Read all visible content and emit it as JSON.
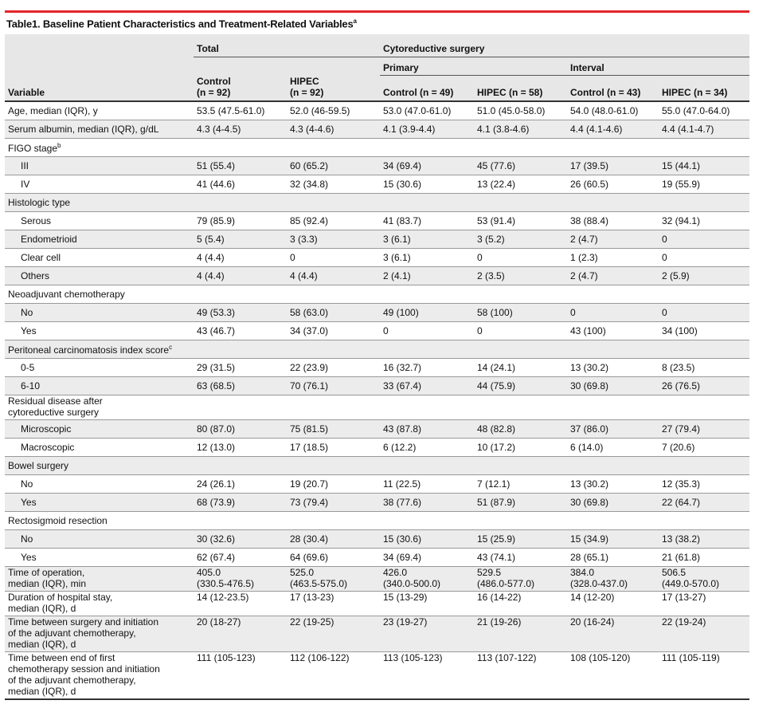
{
  "title": "Table1. Baseline Patient Characteristics and Treatment-Related Variables",
  "title_sup": "a",
  "header": {
    "group_total": "Total",
    "group_cytoreductive": "Cytoreductive surgery",
    "sub_primary": "Primary",
    "sub_interval": "Interval",
    "variable": "Variable",
    "columns": [
      {
        "line1": "Control",
        "line2": "(n = 92)"
      },
      {
        "line1": "HIPEC",
        "line2": "(n = 92)"
      },
      {
        "line1": "Control (n = 49)"
      },
      {
        "line1": "HIPEC (n = 58)"
      },
      {
        "line1": "Control (n = 43)"
      },
      {
        "line1": "HIPEC (n = 34)"
      }
    ]
  },
  "rows": [
    {
      "label": "Age, median (IQR), y",
      "values": [
        "53.5 (47.5-61.0)",
        "52.0 (46-59.5)",
        "53.0 (47.0-61.0)",
        "51.0 (45.0-58.0)",
        "54.0 (48.0-61.0)",
        "55.0 (47.0-64.0)"
      ]
    },
    {
      "label": "Serum albumin, median (IQR), g/dL",
      "values": [
        "4.3 (4-4.5)",
        "4.3 (4-4.6)",
        "4.1 (3.9-4.4)",
        "4.1 (3.8-4.6)",
        "4.4 (4.1-4.6)",
        "4.4 (4.1-4.7)"
      ]
    },
    {
      "label": "FIGO stage",
      "sup": "b"
    },
    {
      "label": "III",
      "values": [
        "51 (55.4)",
        "60 (65.2)",
        "34 (69.4)",
        "45 (77.6)",
        "17 (39.5)",
        "15 (44.1)"
      ]
    },
    {
      "label": "IV",
      "values": [
        "41 (44.6)",
        "32 (34.8)",
        "15 (30.6)",
        "13 (22.4)",
        "26 (60.5)",
        "19 (55.9)"
      ]
    },
    {
      "label": "Histologic type"
    },
    {
      "label": "Serous",
      "values": [
        "79 (85.9)",
        "85 (92.4)",
        "41 (83.7)",
        "53 (91.4)",
        "38 (88.4)",
        "32 (94.1)"
      ]
    },
    {
      "label": "Endometrioid",
      "values": [
        "5 (5.4)",
        "3 (3.3)",
        "3 (6.1)",
        "3 (5.2)",
        "2 (4.7)",
        "0"
      ]
    },
    {
      "label": "Clear cell",
      "values": [
        "4 (4.4)",
        "0",
        "3 (6.1)",
        "0",
        "1 (2.3)",
        "0"
      ]
    },
    {
      "label": "Others",
      "values": [
        "4 (4.4)",
        "4 (4.4)",
        "2 (4.1)",
        "2 (3.5)",
        "2 (4.7)",
        "2 (5.9)"
      ]
    },
    {
      "label": "Neoadjuvant chemotherapy"
    },
    {
      "label": "No",
      "values": [
        "49 (53.3)",
        "58 (63.0)",
        "49 (100)",
        "58 (100)",
        "0",
        "0"
      ]
    },
    {
      "label": "Yes",
      "values": [
        "43 (46.7)",
        "34 (37.0)",
        "0",
        "0",
        "43 (100)",
        "34 (100)"
      ]
    },
    {
      "label": "Peritoneal carcinomatosis index score",
      "sup": "c"
    },
    {
      "label": "0-5",
      "values": [
        "29 (31.5)",
        "22 (23.9)",
        "16 (32.7)",
        "14 (24.1)",
        "13 (30.2)",
        "8 (23.5)"
      ]
    },
    {
      "label": "6-10",
      "values": [
        "63 (68.5)",
        "70 (76.1)",
        "33 (67.4)",
        "44 (75.9)",
        "30 (69.8)",
        "26 (76.5)"
      ]
    },
    {
      "label_lines": [
        "Residual disease after",
        "cytoreductive surgery"
      ]
    },
    {
      "label": "Microscopic",
      "values": [
        "80 (87.0)",
        "75 (81.5)",
        "43 (87.8)",
        "48 (82.8)",
        "37 (86.0)",
        "27 (79.4)"
      ]
    },
    {
      "label": "Macroscopic",
      "values": [
        "12 (13.0)",
        "17 (18.5)",
        "6 (12.2)",
        "10 (17.2)",
        "6 (14.0)",
        "7 (20.6)"
      ]
    },
    {
      "label": "Bowel surgery"
    },
    {
      "label": "No",
      "values": [
        "24 (26.1)",
        "19 (20.7)",
        "11 (22.5)",
        "7 (12.1)",
        "13 (30.2)",
        "12 (35.3)"
      ]
    },
    {
      "label": "Yes",
      "values": [
        "68 (73.9)",
        "73 (79.4)",
        "38 (77.6)",
        "51 (87.9)",
        "30 (69.8)",
        "22 (64.7)"
      ]
    },
    {
      "label": "Rectosigmoid resection"
    },
    {
      "label": "No",
      "values": [
        "30 (32.6)",
        "28 (30.4)",
        "15 (30.6)",
        "15 (25.9)",
        "15 (34.9)",
        "13 (38.2)"
      ]
    },
    {
      "label": "Yes",
      "values": [
        "62 (67.4)",
        "64 (69.6)",
        "34 (69.4)",
        "43 (74.1)",
        "28 (65.1)",
        "21 (61.8)"
      ]
    },
    {
      "label_lines": [
        "Time of operation,",
        "median (IQR), min"
      ],
      "value_lines": [
        [
          "405.0",
          "(330.5-476.5)"
        ],
        [
          "525.0",
          "(463.5-575.0)"
        ],
        [
          "426.0",
          "(340.0-500.0)"
        ],
        [
          "529.5",
          "(486.0-577.0)"
        ],
        [
          "384.0",
          "(328.0-437.0)"
        ],
        [
          "506.5",
          "(449.0-570.0)"
        ]
      ]
    },
    {
      "label_lines": [
        "Duration of hospital stay,",
        "median (IQR), d"
      ],
      "values": [
        "14 (12-23.5)",
        "17 (13-23)",
        "15 (13-29)",
        "16 (14-22)",
        "14 (12-20)",
        "17 (13-27)"
      ]
    },
    {
      "label_lines": [
        "Time between surgery and initiation",
        "of the adjuvant chemotherapy,",
        "median (IQR), d"
      ],
      "values": [
        "20 (18-27)",
        "22 (19-25)",
        "23 (19-27)",
        "21 (19-26)",
        "20 (16-24)",
        "22 (19-24)"
      ]
    },
    {
      "label_lines": [
        "Time between end of first",
        "chemotherapy session and initiation",
        "of the adjuvant chemotherapy,",
        "median (IQR), d"
      ],
      "values": [
        "111 (105-123)",
        "112 (106-122)",
        "113 (105-123)",
        "113 (107-122)",
        "108 (105-120)",
        "111 (105-119)"
      ]
    }
  ]
}
